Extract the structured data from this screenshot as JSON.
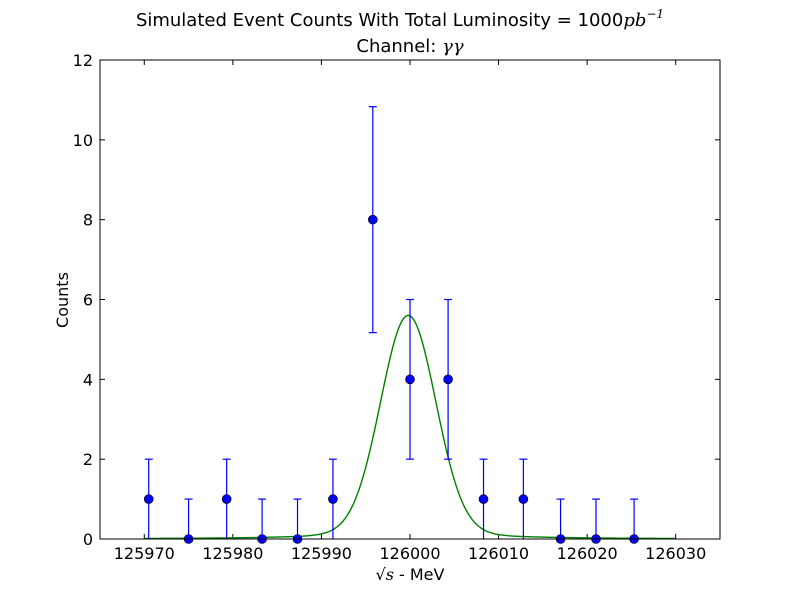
{
  "chart_data": {
    "type": "scatter",
    "title_line1_prefix": "Simulated Event Counts With Total Luminosity = 1000",
    "title_line1_math": "pb",
    "title_line1_sup": "−1",
    "title_line2_prefix": "Channel: ",
    "title_line2_math": "γγ",
    "xlabel_math": "√s",
    "xlabel_suffix": " - MeV",
    "ylabel": "Counts",
    "xlim": [
      125965,
      126035
    ],
    "ylim": [
      0,
      12
    ],
    "x_ticks": [
      125970,
      125980,
      125990,
      126000,
      126010,
      126020,
      126030
    ],
    "y_ticks": [
      0,
      2,
      4,
      6,
      8,
      10,
      12
    ],
    "grid": false,
    "legend": "none",
    "series": [
      {
        "kind": "points_with_errorbars",
        "color": "#0000ff",
        "points": [
          {
            "x": 125970.5,
            "y": 1,
            "yerr": [
              0,
              2
            ]
          },
          {
            "x": 125975.0,
            "y": 0,
            "yerr": [
              0,
              1
            ]
          },
          {
            "x": 125979.3,
            "y": 1,
            "yerr": [
              0,
              2
            ]
          },
          {
            "x": 125983.3,
            "y": 0,
            "yerr": [
              0,
              1
            ]
          },
          {
            "x": 125987.3,
            "y": 0,
            "yerr": [
              0,
              1
            ]
          },
          {
            "x": 125991.3,
            "y": 1,
            "yerr": [
              0,
              2
            ]
          },
          {
            "x": 125995.8,
            "y": 8,
            "yerr": [
              5.17,
              10.83
            ]
          },
          {
            "x": 126000.0,
            "y": 4,
            "yerr": [
              2,
              6
            ]
          },
          {
            "x": 126004.3,
            "y": 4,
            "yerr": [
              2,
              6
            ]
          },
          {
            "x": 126008.3,
            "y": 1,
            "yerr": [
              0,
              2
            ]
          },
          {
            "x": 126012.8,
            "y": 1,
            "yerr": [
              0,
              2
            ]
          },
          {
            "x": 126017.0,
            "y": 0,
            "yerr": [
              0,
              1
            ]
          },
          {
            "x": 126021.0,
            "y": 0,
            "yerr": [
              0,
              1
            ]
          },
          {
            "x": 126025.3,
            "y": 0,
            "yerr": [
              0,
              1
            ]
          }
        ]
      },
      {
        "kind": "fit_curve",
        "color": "#008000",
        "x_range": [
          125970,
          126030
        ],
        "gaussian_peak": 5.3,
        "gaussian_mean": 125999.8,
        "gaussian_sigma": 3.1,
        "baseline_amplitude": 0.45,
        "baseline_sigma": 17
      }
    ]
  }
}
